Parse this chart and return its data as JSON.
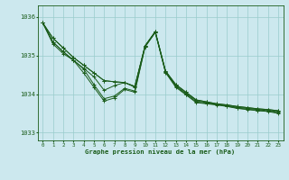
{
  "title": "Graphe pression niveau de la mer (hPa)",
  "xlabel_ticks": [
    0,
    1,
    2,
    3,
    4,
    5,
    6,
    7,
    8,
    9,
    10,
    11,
    12,
    13,
    14,
    15,
    16,
    17,
    18,
    19,
    20,
    21,
    22,
    23
  ],
  "ylim": [
    1032.8,
    1036.3
  ],
  "yticks": [
    1033,
    1034,
    1035,
    1036
  ],
  "background_color": "#cce8ee",
  "grid_color": "#99cccc",
  "line_color": "#1a5c1a",
  "text_color": "#1a5c1a",
  "series": [
    [
      1035.85,
      1035.45,
      1035.2,
      1034.95,
      1034.75,
      1034.55,
      1034.35,
      1034.32,
      1034.3,
      1034.2,
      1035.25,
      1035.62,
      1034.6,
      1034.25,
      1034.05,
      1033.85,
      1033.8,
      1033.75,
      1033.72,
      1033.68,
      1033.65,
      1033.62,
      1033.6,
      1033.57
    ],
    [
      1035.85,
      1035.45,
      1035.2,
      1034.95,
      1034.75,
      1034.55,
      1034.35,
      1034.32,
      1034.3,
      1034.2,
      1035.25,
      1035.62,
      1034.6,
      1034.25,
      1034.05,
      1033.85,
      1033.8,
      1033.75,
      1033.72,
      1033.68,
      1033.65,
      1033.62,
      1033.6,
      1033.57
    ],
    [
      1035.85,
      1035.35,
      1035.1,
      1034.88,
      1034.67,
      1034.45,
      1034.1,
      1034.22,
      1034.3,
      1034.18,
      1035.25,
      1035.62,
      1034.58,
      1034.22,
      1034.02,
      1033.83,
      1033.78,
      1033.73,
      1033.7,
      1033.66,
      1033.63,
      1033.6,
      1033.57,
      1033.55
    ],
    [
      1035.85,
      1035.3,
      1035.05,
      1034.88,
      1034.55,
      1034.18,
      1033.82,
      1033.9,
      1034.12,
      1034.05,
      1035.22,
      1035.6,
      1034.56,
      1034.18,
      1033.98,
      1033.78,
      1033.75,
      1033.72,
      1033.68,
      1033.63,
      1033.6,
      1033.57,
      1033.55,
      1033.5
    ],
    [
      1035.85,
      1035.35,
      1035.1,
      1034.88,
      1034.65,
      1034.25,
      1033.88,
      1033.95,
      1034.15,
      1034.08,
      1035.23,
      1035.6,
      1034.57,
      1034.2,
      1034.0,
      1033.8,
      1033.76,
      1033.73,
      1033.69,
      1033.64,
      1033.61,
      1033.58,
      1033.56,
      1033.52
    ]
  ]
}
